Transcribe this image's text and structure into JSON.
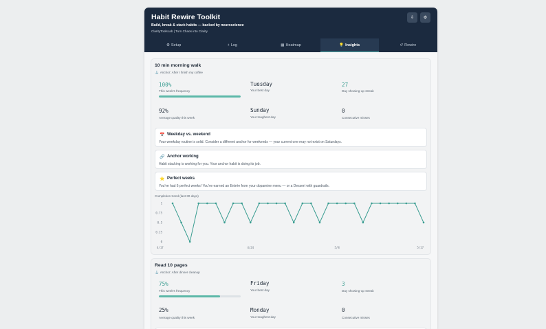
{
  "header": {
    "title": "Habit Rewire Toolkit",
    "subtitle": "Build, break & stack habits — backed by neuroscience",
    "credit": "ClarityToolsLab | Turn Chaos into Clarity",
    "download_icon": "⇩",
    "settings_icon": "⚙"
  },
  "tabs": [
    {
      "icon": "⚙",
      "label": "Setup"
    },
    {
      "icon": "+",
      "label": "Log"
    },
    {
      "icon": "▦",
      "label": "Heatmap"
    },
    {
      "icon": "💡",
      "label": "Insights"
    },
    {
      "icon": "↺",
      "label": "Rewire"
    }
  ],
  "habits": [
    {
      "name": "10 min morning walk",
      "anchor": "Anchor: After I finish my coffee",
      "frequency": "100%",
      "frequency_label": "This week's frequency",
      "frequency_fraction": 1.0,
      "quality": "92%",
      "quality_label": "Average quality this week",
      "best_day": "Tuesday",
      "best_day_label": "Your best day",
      "tough_day": "Sunday",
      "tough_day_label": "Your toughest day",
      "streak": "27",
      "streak_label": "Day showing-up streak",
      "misses": "0",
      "misses_label": "Consecutive misses"
    },
    {
      "name": "Read 10 pages",
      "anchor": "Anchor: After dinner cleanup",
      "frequency": "75%",
      "frequency_label": "This week's frequency",
      "frequency_fraction": 0.75,
      "quality": "25%",
      "quality_label": "Average quality this week",
      "best_day": "Friday",
      "best_day_label": "Your best day",
      "tough_day": "Monday",
      "tough_day_label": "Your toughest day",
      "streak": "3",
      "streak_label": "Day showing-up streak",
      "misses": "0",
      "misses_label": "Consecutive misses"
    }
  ],
  "insights": [
    {
      "icon": "📅",
      "title": "Weekday vs. weekend",
      "text": "Your weekday routine is solid. Consider a different anchor for weekends — your current one may not exist on Saturdays."
    },
    {
      "icon": "🔗",
      "title": "Anchor working",
      "text": "Habit stacking is working for you. Your anchor habit is doing its job."
    },
    {
      "icon": "⭐",
      "title": "Perfect weeks",
      "text": "You've had 6 perfect weeks! You've earned an Entrée from your dopamine menu — or a Dessert with guardrails."
    }
  ],
  "chart_data": {
    "type": "line",
    "title": "Completion trend (last 30 days)",
    "y_tick_labels": [
      "1",
      "0.75",
      "0.5",
      "0.25",
      "0"
    ],
    "ylim": [
      0,
      1
    ],
    "x_tick_labels": [
      "4/17",
      "4/24",
      "5/8",
      "5/17"
    ],
    "x_tick_indices": [
      0,
      9,
      19,
      29
    ],
    "grid": false,
    "series": [
      {
        "color": "#3a9d91",
        "values": [
          1,
          0.5,
          0,
          1,
          1,
          1,
          0.5,
          1,
          1,
          0.5,
          1,
          1,
          1,
          1,
          0.5,
          1,
          1,
          0.5,
          1,
          1,
          1,
          1,
          0.5,
          1,
          1,
          1,
          1,
          1,
          1,
          0.5
        ]
      }
    ]
  }
}
